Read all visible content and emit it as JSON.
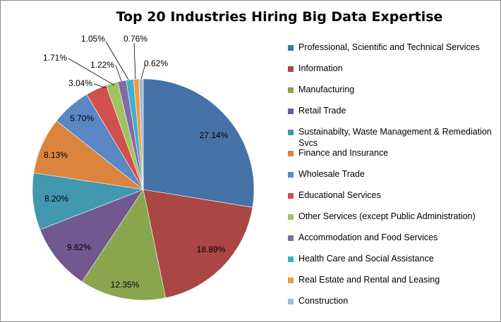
{
  "chart_data": {
    "type": "pie",
    "title": "Top 20 Industries Hiring Big Data Expertise",
    "slices": [
      {
        "label": "Professional, Scientific and Technical Services",
        "value": 27.14,
        "value_label": "27.14%",
        "color": "#4572a7"
      },
      {
        "label": "Information",
        "value": 18.89,
        "value_label": "18.89%",
        "color": "#aa4643"
      },
      {
        "label": "Manufacturing",
        "value": 12.35,
        "value_label": "12.35%",
        "color": "#89a54e"
      },
      {
        "label": "Retail Trade",
        "value": 9.62,
        "value_label": "9.62%",
        "color": "#71588f"
      },
      {
        "label": "Sustainabilty, Waste Management & Remediation Svcs",
        "value": 8.2,
        "value_label": "8.20%",
        "color": "#4198af"
      },
      {
        "label": "Finance and Insurance",
        "value": 8.13,
        "value_label": "8.13%",
        "color": "#db843d"
      },
      {
        "label": "Wholesale Trade",
        "value": 5.7,
        "value_label": "5.70%",
        "color": "#5b87c4"
      },
      {
        "label": "Educational Services",
        "value": 3.04,
        "value_label": "3.04%",
        "color": "#d1504d"
      },
      {
        "label": "Other Services (except Public Administration)",
        "value": 1.71,
        "value_label": "1.71%",
        "color": "#a2c25e"
      },
      {
        "label": "Accommodation and Food Services",
        "value": 1.22,
        "value_label": "1.22%",
        "color": "#8369a6"
      },
      {
        "label": "Health Care and Social Assistance",
        "value": 1.05,
        "value_label": "1.05%",
        "color": "#3fb0cc"
      },
      {
        "label": "Real Estate and Rental and Leasing",
        "value": 0.76,
        "value_label": "0.76%",
        "color": "#f39a3c"
      },
      {
        "label": "Construction",
        "value": 0.62,
        "value_label": "0.62%",
        "color": "#a6b9dc"
      }
    ],
    "legend_position": "right"
  }
}
